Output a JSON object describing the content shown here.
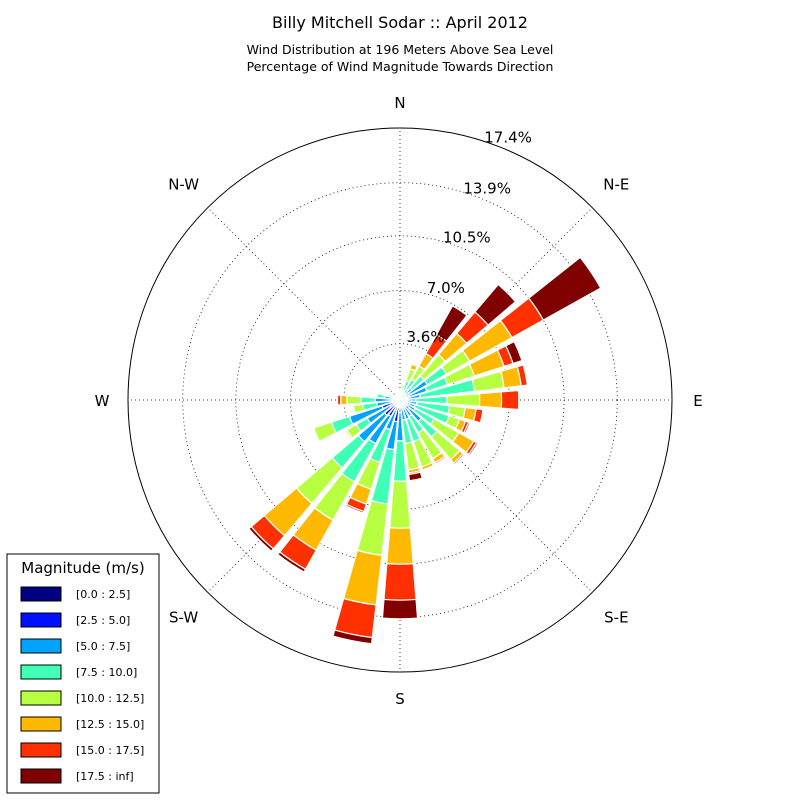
{
  "chart_data": {
    "type": "windrose",
    "title": "Billy Mitchell Sodar :: April 2012",
    "subtitle_lines": [
      "Wind Distribution at 196 Meters Above Sea Level",
      "Percentage of Wind Magnitude Towards Direction"
    ],
    "directions": [
      {
        "label": "N",
        "angle": 0
      },
      {
        "label": "N-E",
        "angle": 45
      },
      {
        "label": "E",
        "angle": 90
      },
      {
        "label": "S-E",
        "angle": 135
      },
      {
        "label": "S",
        "angle": 180
      },
      {
        "label": "S-W",
        "angle": 225
      },
      {
        "label": "W",
        "angle": 270
      },
      {
        "label": "N-W",
        "angle": 315
      }
    ],
    "radial_ticks": [
      3.6,
      7.0,
      10.5,
      13.9,
      17.4
    ],
    "radial_tick_labels": [
      "3.6%",
      "7.0%",
      "10.5%",
      "13.9%",
      "17.4%"
    ],
    "rmax": 17.4,
    "legend": {
      "title": "Magnitude (m/s)",
      "position": "bottom-left",
      "bins": [
        {
          "label": "[0.0 : 2.5]",
          "color": "#000080"
        },
        {
          "label": "[2.5 : 5.0]",
          "color": "#0010ff"
        },
        {
          "label": "[5.0 : 7.5]",
          "color": "#00a4ff"
        },
        {
          "label": "[7.5 : 10.0]",
          "color": "#40ffb7"
        },
        {
          "label": "[10.0 : 12.5]",
          "color": "#b7ff40"
        },
        {
          "label": "[12.5 : 15.0]",
          "color": "#ffb900"
        },
        {
          "label": "[15.0 : 17.5]",
          "color": "#ff3000"
        },
        {
          "label": "[17.5 : inf]",
          "color": "#800000"
        }
      ]
    },
    "sectors": [
      {
        "direction": 0,
        "cumulative": [
          0.05,
          0.2,
          0.35,
          0.55,
          0.65
        ]
      },
      {
        "direction": 11.25,
        "cumulative": [
          0.05,
          0.25,
          0.45,
          0.75,
          0.95
        ]
      },
      {
        "direction": 22.5,
        "cumulative": [
          0.05,
          0.3,
          0.65,
          1.3,
          2.1,
          2.4
        ]
      },
      {
        "direction": 33.75,
        "cumulative": [
          0.05,
          0.35,
          0.8,
          1.5,
          2.5,
          3.4,
          4.8,
          6.9
        ]
      },
      {
        "direction": 45,
        "cumulative": [
          0.05,
          0.4,
          1.0,
          2.0,
          3.8,
          5.6,
          7.4,
          9.7
        ]
      },
      {
        "direction": 56.25,
        "cumulative": [
          0.1,
          0.7,
          2.0,
          3.4,
          5.1,
          8.2,
          10.5,
          14.7
        ]
      },
      {
        "direction": 67.5,
        "cumulative": [
          0.1,
          0.6,
          1.8,
          3.2,
          5.0,
          7.0,
          7.6,
          8.2
        ]
      },
      {
        "direction": 78.75,
        "cumulative": [
          0.05,
          0.5,
          1.3,
          4.8,
          6.7,
          7.8,
          8.2
        ]
      },
      {
        "direction": 90,
        "cumulative": [
          0.05,
          0.3,
          1.0,
          3.0,
          5.1,
          6.5,
          7.6
        ]
      },
      {
        "direction": 101.25,
        "cumulative": [
          0.05,
          0.4,
          1.1,
          3.2,
          4.2,
          4.9,
          5.35,
          5.4
        ]
      },
      {
        "direction": 112.5,
        "cumulative": [
          0.05,
          0.4,
          1.0,
          3.3,
          4.0,
          4.4,
          4.6,
          4.7
        ]
      },
      {
        "direction": 123.75,
        "cumulative": [
          0.05,
          0.4,
          1.1,
          2.5,
          4.3,
          5.4,
          5.6,
          5.7
        ]
      },
      {
        "direction": 135,
        "cumulative": [
          0.1,
          0.8,
          1.8,
          3.1,
          5.0,
          5.3,
          5.4
        ]
      },
      {
        "direction": 146.25,
        "cumulative": [
          0.1,
          0.5,
          1.2,
          2.4,
          4.3,
          4.6,
          4.7
        ]
      },
      {
        "direction": 157.5,
        "cumulative": [
          0.1,
          0.5,
          1.3,
          2.8,
          4.5,
          4.7,
          4.75
        ]
      },
      {
        "direction": 168.75,
        "cumulative": [
          0.1,
          0.5,
          1.3,
          2.8,
          4.5,
          4.7,
          4.8,
          5.2
        ]
      },
      {
        "direction": 180,
        "cumulative": [
          0.1,
          0.8,
          2.6,
          5.2,
          8.2,
          10.5,
          12.8,
          14.0
        ]
      },
      {
        "direction": 191.25,
        "cumulative": [
          0.2,
          1.4,
          3.2,
          6.7,
          10.0,
          13.2,
          15.3,
          15.7
        ]
      },
      {
        "direction": 202.5,
        "cumulative": [
          0.1,
          0.7,
          2.0,
          4.2,
          6.0,
          7.0,
          7.5,
          7.6
        ]
      },
      {
        "direction": 213.75,
        "cumulative": [
          0.2,
          1.2,
          3.2,
          6.0,
          8.8,
          11.0,
          12.4,
          12.6
        ]
      },
      {
        "direction": 225,
        "cumulative": [
          0.2,
          1.3,
          3.5,
          5.7,
          8.7,
          11.4,
          12.5,
          12.7
        ]
      },
      {
        "direction": 236.25,
        "cumulative": [
          0.1,
          0.7,
          2.4,
          3.2,
          3.9,
          4.0
        ]
      },
      {
        "direction": 247.5,
        "cumulative": [
          0.2,
          1.2,
          3.4,
          4.6,
          5.8
        ]
      },
      {
        "direction": 258.75,
        "cumulative": [
          0.1,
          0.5,
          1.5,
          2.4,
          3.0
        ]
      },
      {
        "direction": 270,
        "cumulative": [
          0.1,
          0.5,
          1.6,
          2.5,
          3.4,
          3.8,
          4.0
        ]
      },
      {
        "direction": 281.25,
        "cumulative": [
          0.1,
          0.4,
          1.0,
          1.5
        ]
      },
      {
        "direction": 292.5,
        "cumulative": [
          0.05,
          0.25,
          0.55,
          0.8
        ]
      },
      {
        "direction": 303.75,
        "cumulative": [
          0.05,
          0.2,
          0.35,
          0.5
        ]
      },
      {
        "direction": 315,
        "cumulative": [
          0.05,
          0.15,
          0.25,
          0.35
        ]
      },
      {
        "direction": 326.25,
        "cumulative": [
          0.05,
          0.15,
          0.3
        ]
      },
      {
        "direction": 337.5,
        "cumulative": [
          0.05,
          0.2,
          0.3,
          0.4
        ]
      },
      {
        "direction": 348.75,
        "cumulative": [
          0.05,
          0.25,
          0.4,
          0.55
        ]
      }
    ],
    "grid": true
  }
}
